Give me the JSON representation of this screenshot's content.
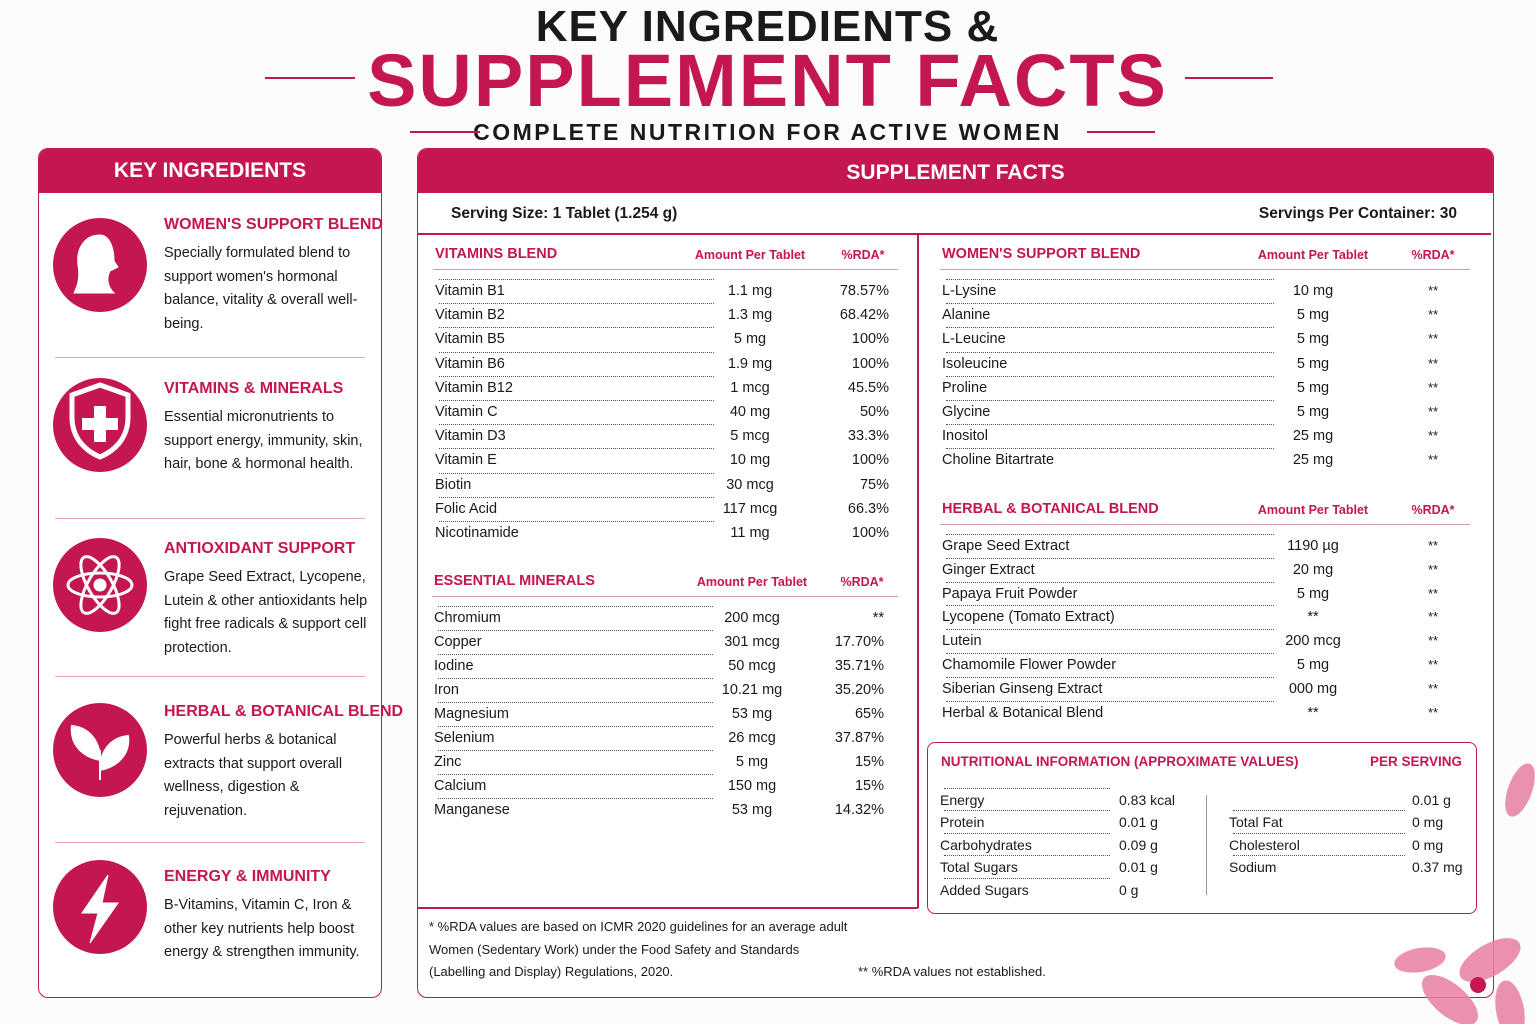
{
  "header": {
    "title_line1": "KEY INGREDIENTS &",
    "title_line2": "SUPPLEMENT FACTS",
    "subtitle": "COMPLETE NUTRITION FOR ACTIVE WOMEN"
  },
  "key_ingredients": {
    "heading": "KEY INGREDIENTS",
    "items": [
      {
        "title": "WOMEN'S SUPPORT BLEND",
        "text": "Specially formulated blend to support women's hormonal balance, vitality & overall well-being."
      },
      {
        "title": "VITAMINS & MINERALS",
        "text": "Essential micronutrients to support energy, immunity, skin, hair, bone & hormonal health."
      },
      {
        "title": "ANTIOXIDANT SUPPORT",
        "text": "Grape Seed Extract, Lycopene, Lutein & other antioxidants help fight free radicals & support cell protection."
      },
      {
        "title": "HERBAL & BOTANICAL BLEND",
        "text": "Powerful herbs & botanical extracts that support overall wellness, digestion & rejuvenation."
      },
      {
        "title": "ENERGY & IMMUNITY",
        "text": "B-Vitamins, Vitamin C, Iron & other key nutrients help boost energy & strengthen immunity."
      }
    ]
  },
  "supplement_facts": {
    "heading": "SUPPLEMENT FACTS",
    "serving_size": "Serving Size: 1 Tablet (1.254 g)",
    "servings_per_container": "Servings Per Container: 30",
    "vitamins": {
      "title": "VITAMINS BLEND",
      "amount_header": "Amount Per Tablet",
      "rda_header": "%RDA*",
      "rows": [
        [
          "Vitamin B1",
          "1.1 mg",
          "78.57%"
        ],
        [
          "Vitamin B2",
          "1.3 mg",
          "68.42%"
        ],
        [
          "Vitamin B5",
          "5 mg",
          "100%"
        ],
        [
          "Vitamin B6",
          "1.9 mg",
          "100%"
        ],
        [
          "Vitamin B12",
          "1 mcg",
          "45.5%"
        ],
        [
          "Vitamin C",
          "40 mg",
          "50%"
        ],
        [
          "Vitamin D3",
          "5 mcg",
          "33.3%"
        ],
        [
          "Vitamin E",
          "10 mg",
          "100%"
        ],
        [
          "Biotin",
          "30 mcg",
          "75%"
        ],
        [
          "Folic Acid",
          "117 mcg",
          "66.3%"
        ],
        [
          "Nicotinamide",
          "11 mg",
          "100%"
        ]
      ]
    },
    "minerals": {
      "title": "ESSENTIAL MINERALS",
      "amount_header": "Amount Per Tablet",
      "rda_header": "%RDA*",
      "rows": [
        [
          "Chromium",
          "200 mcg",
          "**"
        ],
        [
          "Copper",
          "301 mcg",
          "17.70%"
        ],
        [
          "Iodine",
          "50 mcg",
          "35.71%"
        ],
        [
          "Iron",
          "10.21 mg",
          "35.20%"
        ],
        [
          "Magnesium",
          "53 mg",
          "65%"
        ],
        [
          "Selenium",
          "26 mcg",
          "37.87%"
        ],
        [
          "Zinc",
          "5 mg",
          "15%"
        ],
        [
          "Calcium",
          "150 mg",
          "15%"
        ],
        [
          "Manganese",
          "53 mg",
          "14.32%"
        ]
      ]
    },
    "womens_blend": {
      "title": "WOMEN'S SUPPORT BLEND",
      "amount_header": "Amount Per Tablet",
      "rda_header": "%RDA*",
      "rows": [
        [
          "L-Lysine",
          "10 mg",
          "**"
        ],
        [
          "Alanine",
          "5 mg",
          "**"
        ],
        [
          "L-Leucine",
          "5 mg",
          "**"
        ],
        [
          "Isoleucine",
          "5 mg",
          "**"
        ],
        [
          "Proline",
          "5 mg",
          "**"
        ],
        [
          "Glycine",
          "5 mg",
          "**"
        ],
        [
          "Inositol",
          "25 mg",
          "**"
        ],
        [
          "Choline Bitartrate",
          "25 mg",
          "**"
        ]
      ]
    },
    "herbal_blend": {
      "title": "HERBAL & BOTANICAL BLEND",
      "amount_header": "Amount Per Tablet",
      "rda_header": "%RDA*",
      "rows": [
        [
          "Grape Seed Extract",
          "1190 µg",
          "**"
        ],
        [
          "Ginger Extract",
          "20 mg",
          "**"
        ],
        [
          "Papaya Fruit Powder",
          "5 mg",
          "**"
        ],
        [
          "Lycopene (Tomato Extract)",
          "**",
          "**"
        ],
        [
          "Lutein",
          "200 mcg",
          "**"
        ],
        [
          "Chamomile Flower Powder",
          "5 mg",
          "**"
        ],
        [
          "Siberian Ginseng Extract",
          "000 mg",
          "**"
        ],
        [
          "Herbal & Botanical Blend",
          "**",
          "**"
        ]
      ]
    },
    "nutrition": {
      "title": "NUTRITIONAL INFORMATION (APPROXIMATE VALUES)",
      "per_serving": "PER SERVING",
      "left_rows": [
        [
          "Energy",
          "0.83 kcal"
        ],
        [
          "Protein",
          "0.01 g"
        ],
        [
          "Carbohydrates",
          "0.09 g"
        ],
        [
          "Total Sugars",
          "0.01 g"
        ],
        [
          "Added Sugars",
          "0 g"
        ]
      ],
      "right_rows": [
        {
          "value": "0.01 g"
        },
        {
          "name": "Total Fat",
          "value": "0 mg"
        },
        {
          "name": "Cholesterol",
          "value": "0 mg"
        },
        {
          "name": "Sodium",
          "value": "0.37 mg"
        }
      ]
    },
    "footnote": {
      "lines": [
        "* %RDA values are based on ICMR 2020 guidelines for an average adult",
        "Women (Sedentary Work) under the Food Safety and Standards",
        "(Labelling and Display) Regulations, 2020."
      ],
      "note": "** %RDA values not established."
    }
  }
}
